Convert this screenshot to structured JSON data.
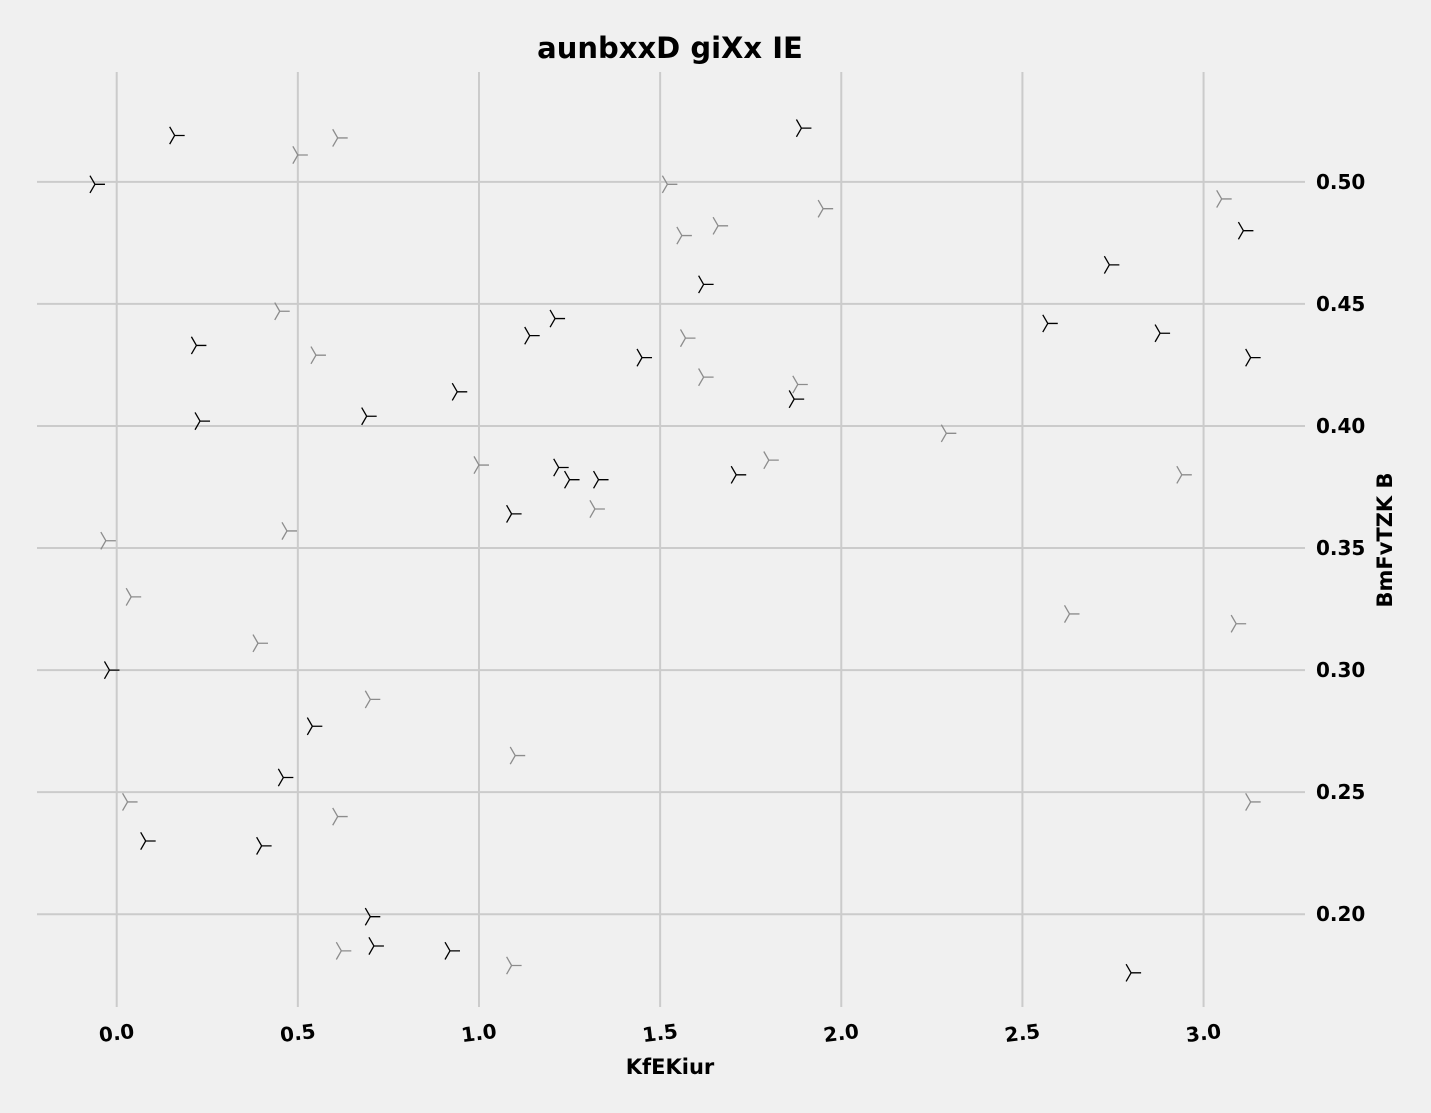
{
  "chart_data": {
    "type": "scatter",
    "title": "aunbxxD giXx IE",
    "xlabel": "KfEKiur",
    "ylabel": "BmFvTZK B",
    "xlim": [
      -0.22,
      3.28
    ],
    "ylim": [
      0.162,
      0.545
    ],
    "xticks": [
      "0.0",
      "0.5",
      "1.0",
      "1.5",
      "2.0",
      "2.5",
      "3.0"
    ],
    "yticks": [
      "0.20",
      "0.25",
      "0.30",
      "0.35",
      "0.40",
      "0.45",
      "0.50"
    ],
    "y_axis_side": "right",
    "grid": true,
    "marker": "tri_left",
    "colors": {
      "dark": "#000000",
      "light": "#8c8c8c",
      "grid": "#cbcbcb",
      "background": "#f0f0f0"
    },
    "series": [
      {
        "color": "#000000",
        "points": [
          {
            "x": -0.06,
            "y": 0.499
          },
          {
            "x": 0.16,
            "y": 0.519
          },
          {
            "x": 1.89,
            "y": 0.522
          },
          {
            "x": 3.11,
            "y": 0.48
          },
          {
            "x": 2.74,
            "y": 0.466
          },
          {
            "x": 1.62,
            "y": 0.458
          },
          {
            "x": 1.21,
            "y": 0.444
          },
          {
            "x": 1.14,
            "y": 0.437
          },
          {
            "x": 0.22,
            "y": 0.433
          },
          {
            "x": 1.45,
            "y": 0.428
          },
          {
            "x": 2.57,
            "y": 0.442
          },
          {
            "x": 2.88,
            "y": 0.438
          },
          {
            "x": 3.13,
            "y": 0.428
          },
          {
            "x": 1.87,
            "y": 0.411
          },
          {
            "x": 0.94,
            "y": 0.414
          },
          {
            "x": 0.69,
            "y": 0.404
          },
          {
            "x": 0.23,
            "y": 0.402
          },
          {
            "x": 1.22,
            "y": 0.383
          },
          {
            "x": 1.25,
            "y": 0.378
          },
          {
            "x": 1.33,
            "y": 0.378
          },
          {
            "x": 1.71,
            "y": 0.38
          },
          {
            "x": 1.09,
            "y": 0.364
          },
          {
            "x": -0.02,
            "y": 0.3
          },
          {
            "x": 0.54,
            "y": 0.277
          },
          {
            "x": 0.46,
            "y": 0.256
          },
          {
            "x": 0.08,
            "y": 0.23
          },
          {
            "x": 0.4,
            "y": 0.228
          },
          {
            "x": 0.7,
            "y": 0.199
          },
          {
            "x": 0.71,
            "y": 0.187
          },
          {
            "x": 0.92,
            "y": 0.185
          },
          {
            "x": 2.8,
            "y": 0.176
          }
        ]
      },
      {
        "color": "#8c8c8c",
        "points": [
          {
            "x": 0.5,
            "y": 0.511
          },
          {
            "x": 0.61,
            "y": 0.518
          },
          {
            "x": 1.52,
            "y": 0.499
          },
          {
            "x": 3.05,
            "y": 0.493
          },
          {
            "x": 1.95,
            "y": 0.489
          },
          {
            "x": 1.66,
            "y": 0.482
          },
          {
            "x": 1.56,
            "y": 0.478
          },
          {
            "x": 0.45,
            "y": 0.447
          },
          {
            "x": 1.57,
            "y": 0.436
          },
          {
            "x": 0.55,
            "y": 0.429
          },
          {
            "x": 1.62,
            "y": 0.42
          },
          {
            "x": 1.88,
            "y": 0.417
          },
          {
            "x": 2.29,
            "y": 0.397
          },
          {
            "x": 1.8,
            "y": 0.386
          },
          {
            "x": 1.0,
            "y": 0.384
          },
          {
            "x": 2.94,
            "y": 0.38
          },
          {
            "x": 1.32,
            "y": 0.366
          },
          {
            "x": 0.47,
            "y": 0.357
          },
          {
            "x": -0.03,
            "y": 0.353
          },
          {
            "x": 0.04,
            "y": 0.33
          },
          {
            "x": 2.63,
            "y": 0.323
          },
          {
            "x": 3.09,
            "y": 0.319
          },
          {
            "x": 0.39,
            "y": 0.311
          },
          {
            "x": 0.7,
            "y": 0.288
          },
          {
            "x": 1.1,
            "y": 0.265
          },
          {
            "x": 0.03,
            "y": 0.246
          },
          {
            "x": 3.13,
            "y": 0.246
          },
          {
            "x": 0.61,
            "y": 0.24
          },
          {
            "x": 0.62,
            "y": 0.185
          },
          {
            "x": 1.09,
            "y": 0.179
          }
        ]
      }
    ]
  }
}
